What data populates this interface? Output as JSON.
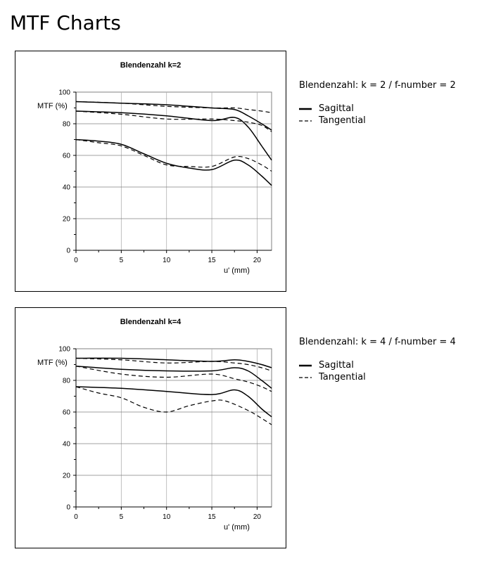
{
  "page": {
    "title": "MTF Charts"
  },
  "charts": [
    {
      "title": "Blendenzahl k=2",
      "description": "Blendenzahl: k = 2 / f-number = 2",
      "legend": [
        {
          "label": "Sagittal",
          "style": "solid"
        },
        {
          "label": "Tangential",
          "style": "dashed"
        }
      ]
    },
    {
      "title": "Blendenzahl k=4",
      "description": "Blendenzahl: k = 4 / f-number = 4",
      "legend": [
        {
          "label": "Sagittal",
          "style": "solid"
        },
        {
          "label": "Tangential",
          "style": "dashed"
        }
      ]
    }
  ],
  "chart_data": [
    {
      "type": "line",
      "title": "Blendenzahl k=2",
      "xlabel": "u' (mm)",
      "ylabel": "MTF (%)",
      "xlim": [
        0,
        21.6
      ],
      "ylim": [
        0,
        100
      ],
      "xticks": [
        0,
        5,
        10,
        15,
        20
      ],
      "yticks": [
        0,
        20,
        40,
        60,
        80,
        100
      ],
      "grid": true,
      "series": [
        {
          "name": "Sagittal",
          "style": "solid",
          "x": [
            0,
            5,
            10,
            15,
            17.5,
            19,
            20.5,
            21.6
          ],
          "y": [
            94,
            93,
            92,
            90,
            89,
            85,
            80,
            76
          ]
        },
        {
          "name": "Tangential",
          "style": "dashed",
          "x": [
            0,
            5,
            10,
            15,
            17.5,
            19,
            20.5,
            21.6
          ],
          "y": [
            94,
            93,
            91,
            90,
            90,
            89,
            88,
            87
          ]
        },
        {
          "name": "Sagittal",
          "style": "solid",
          "x": [
            0,
            5,
            10,
            15,
            17.5,
            19,
            20.5,
            21.6
          ],
          "y": [
            88,
            87,
            85,
            82,
            84,
            78,
            66,
            57
          ]
        },
        {
          "name": "Tangential",
          "style": "dashed",
          "x": [
            0,
            5,
            10,
            15,
            17.5,
            19,
            20.5,
            21.6
          ],
          "y": [
            88,
            86,
            83,
            83,
            82,
            81,
            79,
            75
          ]
        },
        {
          "name": "Sagittal",
          "style": "solid",
          "x": [
            0,
            2.5,
            5,
            7.5,
            10,
            12.5,
            15,
            17.5,
            19,
            20.5,
            21.6
          ],
          "y": [
            70,
            69,
            67,
            61,
            55,
            52,
            51,
            57,
            54,
            47,
            41
          ]
        },
        {
          "name": "Tangential",
          "style": "dashed",
          "x": [
            0,
            2.5,
            5,
            7.5,
            10,
            12.5,
            15,
            17.5,
            19,
            20.5,
            21.6
          ],
          "y": [
            70,
            68,
            66,
            60,
            54,
            53,
            53,
            59,
            58,
            54,
            50
          ]
        }
      ]
    },
    {
      "type": "line",
      "title": "Blendenzahl k=4",
      "xlabel": "u' (mm)",
      "ylabel": "MTF (%)",
      "xlim": [
        0,
        21.6
      ],
      "ylim": [
        0,
        100
      ],
      "xticks": [
        0,
        5,
        10,
        15,
        20
      ],
      "yticks": [
        0,
        20,
        40,
        60,
        80,
        100
      ],
      "grid": true,
      "series": [
        {
          "name": "Sagittal",
          "style": "solid",
          "x": [
            0,
            5,
            10,
            15,
            17.5,
            19,
            20.5,
            21.6
          ],
          "y": [
            94,
            94,
            93,
            92,
            93,
            92,
            90,
            88
          ]
        },
        {
          "name": "Tangential",
          "style": "dashed",
          "x": [
            0,
            5,
            10,
            15,
            17.5,
            19,
            20.5,
            21.6
          ],
          "y": [
            94,
            93,
            91,
            92,
            91,
            90,
            88,
            86
          ]
        },
        {
          "name": "Sagittal",
          "style": "solid",
          "x": [
            0,
            5,
            10,
            15,
            17.5,
            19,
            20.5,
            21.6
          ],
          "y": [
            89,
            87,
            86,
            86,
            88,
            86,
            80,
            75
          ]
        },
        {
          "name": "Tangential",
          "style": "dashed",
          "x": [
            0,
            5,
            10,
            15,
            17.5,
            19,
            20.5,
            21.6
          ],
          "y": [
            89,
            84,
            82,
            84,
            81,
            79,
            76,
            73
          ]
        },
        {
          "name": "Sagittal",
          "style": "solid",
          "x": [
            0,
            5,
            10,
            15,
            17.5,
            19,
            20.5,
            21.6
          ],
          "y": [
            76,
            75,
            73,
            71,
            74,
            70,
            62,
            57
          ]
        },
        {
          "name": "Tangential",
          "style": "dashed",
          "x": [
            0,
            2.5,
            5,
            7.5,
            10,
            12.5,
            15,
            16.5,
            19,
            20.5,
            21.6
          ],
          "y": [
            76,
            72,
            69,
            63,
            60,
            64,
            67,
            67,
            61,
            56,
            52
          ]
        }
      ]
    }
  ]
}
